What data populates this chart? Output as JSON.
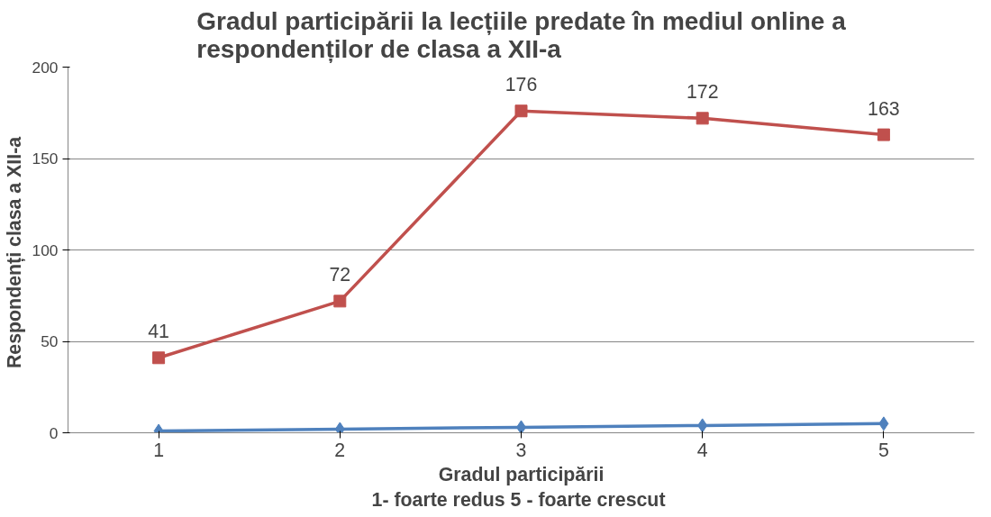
{
  "chart_data": {
    "type": "line",
    "title": "Gradul participării la lecțiile predate în mediul online a\nrespondenților de clasa a XII-a",
    "xlabel": "Gradul participării\n1-  foarte redus 5 - foarte crescut",
    "ylabel": "Respondenți clasa  a XII-a",
    "categories": [
      "1",
      "2",
      "3",
      "4",
      "5"
    ],
    "series": [
      {
        "color": "#4f81bd",
        "values": [
          1,
          2,
          3,
          4,
          5
        ],
        "marker": "diamond"
      },
      {
        "color": "#c0504d",
        "values": [
          41,
          72,
          176,
          172,
          163
        ],
        "marker": "square",
        "value_labels": [
          "41",
          "72",
          "176",
          "172",
          "163"
        ]
      }
    ],
    "ylim": [
      0,
      200
    ],
    "yticks": [
      0,
      50,
      100,
      150,
      200
    ],
    "grid": "y"
  }
}
